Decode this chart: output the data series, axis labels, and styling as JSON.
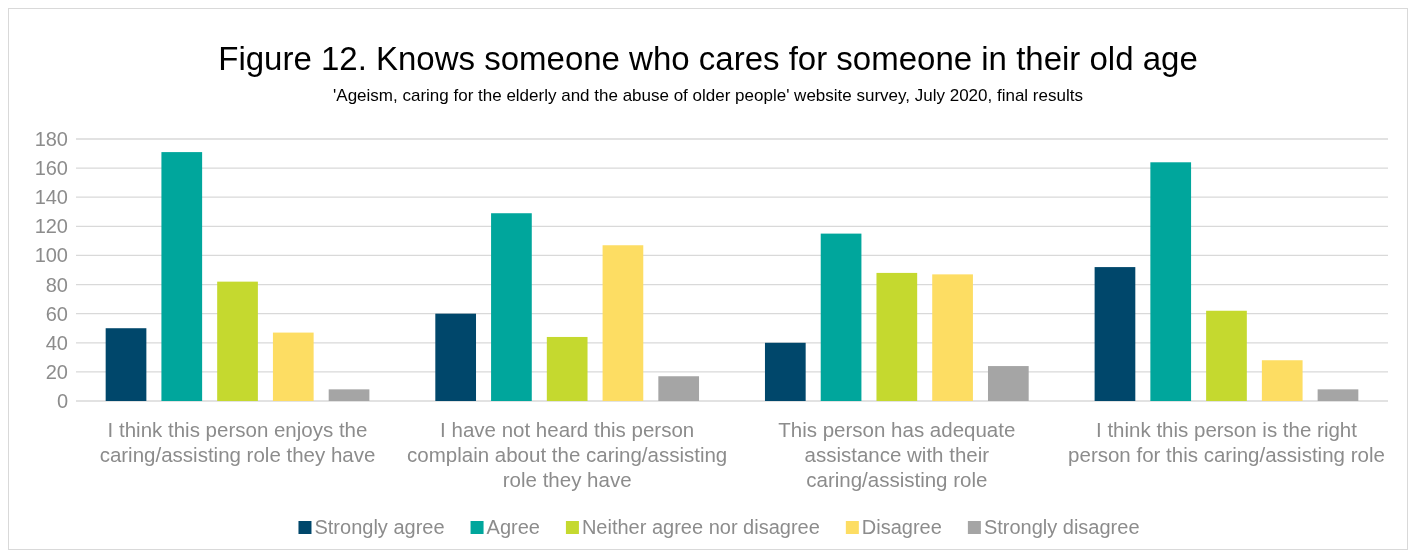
{
  "chart_data": {
    "type": "bar",
    "title": "Figure 12. Knows someone who cares for someone in their old age",
    "subtitle": "'Ageism, caring for the elderly and the abuse of older people' website survey, July 2020, final results",
    "categories": [
      "I think this person enjoys the caring/assisting role they have",
      "I have not heard this person complain about the caring/assisting role they have",
      "This person has adequate assistance with their caring/assisting role",
      "I think this person is the right person for this caring/assisting role"
    ],
    "series": [
      {
        "name": "Strongly agree",
        "color": "#00476b",
        "values": [
          50,
          60,
          40,
          92
        ]
      },
      {
        "name": "Agree",
        "color": "#00a69c",
        "values": [
          171,
          129,
          115,
          164
        ]
      },
      {
        "name": "Neither agree nor disagree",
        "color": "#c5d92f",
        "values": [
          82,
          44,
          88,
          62
        ]
      },
      {
        "name": "Disagree",
        "color": "#fddd63",
        "values": [
          47,
          107,
          87,
          28
        ]
      },
      {
        "name": "Strongly disagree",
        "color": "#a5a5a5",
        "values": [
          8,
          17,
          24,
          8
        ]
      }
    ],
    "ylim": [
      0,
      180
    ],
    "yticks": [
      0,
      20,
      40,
      60,
      80,
      100,
      120,
      140,
      160,
      180
    ],
    "grid": "y",
    "legend": "bottom"
  }
}
